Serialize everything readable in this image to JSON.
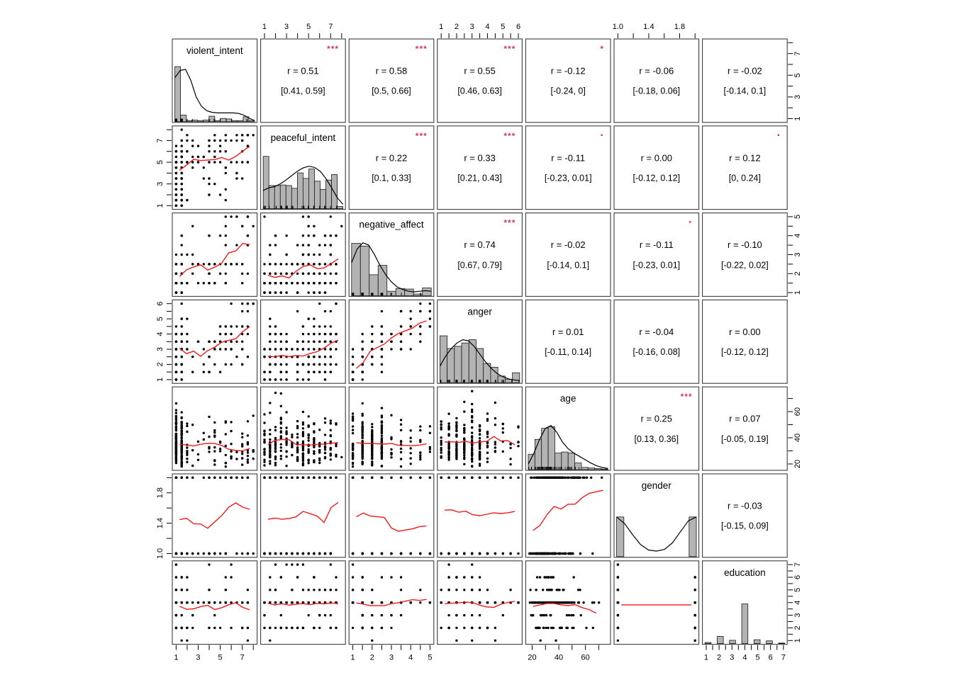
{
  "chart_data": {
    "type": "scatter",
    "subtype": "scatterplot-matrix-pairs-panels",
    "title": "",
    "n_points_per_panel": 240,
    "grid": false,
    "colors": {
      "background": "#ffffff",
      "panel_border": "#3d3d3d",
      "hist_fill": "#b3b3b3",
      "hist_stroke": "#1a1a1a",
      "density_line": "#000000",
      "scatter_points": "#000000",
      "smooth_line": "#f01b1b",
      "significance": "#d63a58",
      "text": "#000000"
    },
    "correlation_label_prefix": "r  =",
    "variables": [
      {
        "name": "violent_intent",
        "domain": [
          1,
          8
        ],
        "round": 0.5,
        "rug": true,
        "ticks": [
          1,
          2,
          3,
          4,
          5,
          6,
          7,
          8
        ],
        "tick_labels": [
          {
            "v": 1,
            "t": "1"
          },
          {
            "v": 3,
            "t": "3"
          },
          {
            "v": 5,
            "t": "5"
          },
          {
            "v": 7,
            "t": "7"
          }
        ],
        "hist": [
          1.0,
          0.12,
          0.02,
          0.03,
          0.02,
          0.03,
          0.1,
          0.02,
          0.06,
          0.05,
          0.02,
          0.02,
          0.09,
          0.02
        ],
        "density": [
          0.8,
          0.93,
          0.95,
          0.75,
          0.45,
          0.28,
          0.2,
          0.17,
          0.16,
          0.16,
          0.16,
          0.16,
          0.15,
          0.12,
          0.06,
          0.02
        ]
      },
      {
        "name": "peaceful_intent",
        "domain": [
          1,
          8
        ],
        "round": 0.5,
        "rug": true,
        "ticks": [
          1,
          2,
          3,
          4,
          5,
          6,
          7,
          8
        ],
        "tick_labels": [
          {
            "v": 1,
            "t": "1"
          },
          {
            "v": 3,
            "t": "3"
          },
          {
            "v": 5,
            "t": "5"
          },
          {
            "v": 7,
            "t": "7"
          }
        ],
        "hist": [
          0.95,
          0.42,
          0.42,
          0.43,
          0.42,
          0.37,
          0.65,
          0.55,
          0.72,
          0.5,
          0.35,
          0.52,
          0.62,
          0.04
        ],
        "density": [
          0.33,
          0.38,
          0.4,
          0.45,
          0.52,
          0.6,
          0.68,
          0.74,
          0.77,
          0.75,
          0.68,
          0.55,
          0.38,
          0.2,
          0.08
        ]
      },
      {
        "name": "negative_affect",
        "domain": [
          1,
          5
        ],
        "round": 0.5,
        "rug": true,
        "ticks": [
          1,
          1.5,
          2,
          2.5,
          3,
          3.5,
          4,
          4.5,
          5
        ],
        "tick_labels": [
          {
            "v": 1,
            "t": "1"
          },
          {
            "v": 2,
            "t": "2"
          },
          {
            "v": 3,
            "t": "3"
          },
          {
            "v": 4,
            "t": "4"
          },
          {
            "v": 5,
            "t": "5"
          }
        ],
        "hist": [
          0.95,
          0.9,
          0.38,
          0.55,
          0.08,
          0.13,
          0.12,
          0.03,
          0.14
        ],
        "density": [
          0.6,
          0.85,
          0.96,
          0.92,
          0.75,
          0.55,
          0.38,
          0.25,
          0.16,
          0.11,
          0.08,
          0.07,
          0.08,
          0.09,
          0.08
        ]
      },
      {
        "name": "anger",
        "domain": [
          1,
          6
        ],
        "round": 0.5,
        "rug": true,
        "ticks": [
          1,
          1.5,
          2,
          2.5,
          3,
          3.5,
          4,
          4.5,
          5,
          5.5,
          6
        ],
        "tick_labels": [
          {
            "v": 1,
            "t": "1"
          },
          {
            "v": 2,
            "t": "2"
          },
          {
            "v": 3,
            "t": "3"
          },
          {
            "v": 4,
            "t": "4"
          },
          {
            "v": 5,
            "t": "5"
          },
          {
            "v": 6,
            "t": "6"
          }
        ],
        "hist": [
          0.85,
          0.62,
          0.66,
          0.72,
          0.78,
          0.62,
          0.35,
          0.28,
          0.12,
          0.06,
          0.18
        ],
        "density": [
          0.3,
          0.48,
          0.62,
          0.72,
          0.78,
          0.76,
          0.66,
          0.52,
          0.38,
          0.26,
          0.17,
          0.11,
          0.07,
          0.05,
          0.04
        ]
      },
      {
        "name": "age",
        "domain": [
          18,
          76
        ],
        "round": 0,
        "rug": true,
        "ticks": [
          20,
          30,
          40,
          50,
          60,
          70
        ],
        "tick_labels": [
          {
            "v": 20,
            "t": "20"
          },
          {
            "v": 40,
            "t": "40"
          },
          {
            "v": 60,
            "t": "60"
          }
        ],
        "hist": [
          0.28,
          0.55,
          0.75,
          0.78,
          0.3,
          0.32,
          0.3,
          0.12,
          0.04,
          0.03,
          0.02,
          0.01
        ],
        "density": [
          0.1,
          0.3,
          0.55,
          0.75,
          0.8,
          0.68,
          0.5,
          0.38,
          0.3,
          0.24,
          0.18,
          0.12,
          0.07,
          0.04,
          0.02
        ]
      },
      {
        "name": "gender",
        "domain": [
          1,
          2
        ],
        "round": 1,
        "rug": false,
        "ticks": [
          1.0,
          1.2,
          1.4,
          1.6,
          1.8,
          2.0
        ],
        "tick_labels": [
          {
            "v": 1.0,
            "t": "1.0"
          },
          {
            "v": 1.4,
            "t": "1.4"
          },
          {
            "v": 1.8,
            "t": "1.8"
          }
        ],
        "hist": [
          0.72,
          0,
          0,
          0,
          0,
          0,
          0,
          0,
          0,
          0,
          0.72
        ],
        "density": [
          0.72,
          0.6,
          0.4,
          0.22,
          0.12,
          0.1,
          0.13,
          0.25,
          0.45,
          0.65,
          0.72
        ]
      },
      {
        "name": "education",
        "domain": [
          1,
          7
        ],
        "round": 1,
        "rug": false,
        "ticks": [
          1,
          1.5,
          2,
          2.5,
          3,
          3.5,
          4,
          4.5,
          5,
          5.5,
          6,
          6.5,
          7
        ],
        "tick_labels": [
          {
            "v": 1,
            "t": "1"
          },
          {
            "v": 2,
            "t": "2"
          },
          {
            "v": 3,
            "t": "3"
          },
          {
            "v": 4,
            "t": "4"
          },
          {
            "v": 5,
            "t": "5"
          },
          {
            "v": 6,
            "t": "6"
          },
          {
            "v": 7,
            "t": "7"
          }
        ],
        "hist": [
          0.02,
          0,
          0.13,
          0,
          0.06,
          0,
          0.72,
          0,
          0.07,
          0,
          0.05,
          0,
          0.01
        ],
        "density": []
      }
    ],
    "correlations": [
      {
        "row": 0,
        "col": 1,
        "pair": [
          "violent_intent",
          "peaceful_intent"
        ],
        "r": "0.51",
        "ci": "[0.41, 0.59]",
        "sig": "***"
      },
      {
        "row": 0,
        "col": 2,
        "pair": [
          "violent_intent",
          "negative_affect"
        ],
        "r": "0.58",
        "ci": "[0.5, 0.66]",
        "sig": "***"
      },
      {
        "row": 0,
        "col": 3,
        "pair": [
          "violent_intent",
          "anger"
        ],
        "r": "0.55",
        "ci": "[0.46, 0.63]",
        "sig": "***"
      },
      {
        "row": 0,
        "col": 4,
        "pair": [
          "violent_intent",
          "age"
        ],
        "r": "-0.12",
        "ci": "[-0.24, 0]",
        "sig": "*"
      },
      {
        "row": 0,
        "col": 5,
        "pair": [
          "violent_intent",
          "gender"
        ],
        "r": "-0.06",
        "ci": "[-0.18, 0.06]",
        "sig": ""
      },
      {
        "row": 0,
        "col": 6,
        "pair": [
          "violent_intent",
          "education"
        ],
        "r": "-0.02",
        "ci": "[-0.14, 0.1]",
        "sig": ""
      },
      {
        "row": 1,
        "col": 2,
        "pair": [
          "peaceful_intent",
          "negative_affect"
        ],
        "r": "0.22",
        "ci": "[0.1, 0.33]",
        "sig": "***"
      },
      {
        "row": 1,
        "col": 3,
        "pair": [
          "peaceful_intent",
          "anger"
        ],
        "r": "0.33",
        "ci": "[0.21, 0.43]",
        "sig": "***"
      },
      {
        "row": 1,
        "col": 4,
        "pair": [
          "peaceful_intent",
          "age"
        ],
        "r": "-0.11",
        "ci": "[-0.23, 0.01]",
        "sig": "."
      },
      {
        "row": 1,
        "col": 5,
        "pair": [
          "peaceful_intent",
          "gender"
        ],
        "r": "0.00",
        "ci": "[-0.12, 0.12]",
        "sig": ""
      },
      {
        "row": 1,
        "col": 6,
        "pair": [
          "peaceful_intent",
          "education"
        ],
        "r": "0.12",
        "ci": "[0, 0.24]",
        "sig": "."
      },
      {
        "row": 2,
        "col": 3,
        "pair": [
          "negative_affect",
          "anger"
        ],
        "r": "0.74",
        "ci": "[0.67, 0.79]",
        "sig": "***"
      },
      {
        "row": 2,
        "col": 4,
        "pair": [
          "negative_affect",
          "age"
        ],
        "r": "-0.02",
        "ci": "[-0.14, 0.1]",
        "sig": ""
      },
      {
        "row": 2,
        "col": 5,
        "pair": [
          "negative_affect",
          "gender"
        ],
        "r": "-0.11",
        "ci": "[-0.23, 0.01]",
        "sig": "."
      },
      {
        "row": 2,
        "col": 6,
        "pair": [
          "negative_affect",
          "education"
        ],
        "r": "-0.10",
        "ci": "[-0.22, 0.02]",
        "sig": ""
      },
      {
        "row": 3,
        "col": 4,
        "pair": [
          "anger",
          "age"
        ],
        "r": "0.01",
        "ci": "[-0.11, 0.14]",
        "sig": ""
      },
      {
        "row": 3,
        "col": 5,
        "pair": [
          "anger",
          "gender"
        ],
        "r": "-0.04",
        "ci": "[-0.16, 0.08]",
        "sig": ""
      },
      {
        "row": 3,
        "col": 6,
        "pair": [
          "anger",
          "education"
        ],
        "r": "0.00",
        "ci": "[-0.12, 0.12]",
        "sig": ""
      },
      {
        "row": 4,
        "col": 5,
        "pair": [
          "age",
          "gender"
        ],
        "r": "0.25",
        "ci": "[0.13, 0.36]",
        "sig": "***"
      },
      {
        "row": 4,
        "col": 6,
        "pair": [
          "age",
          "education"
        ],
        "r": "0.07",
        "ci": "[-0.05, 0.19]",
        "sig": ""
      },
      {
        "row": 5,
        "col": 6,
        "pair": [
          "gender",
          "education"
        ],
        "r": "-0.03",
        "ci": "[-0.15, 0.09]",
        "sig": ""
      }
    ]
  }
}
